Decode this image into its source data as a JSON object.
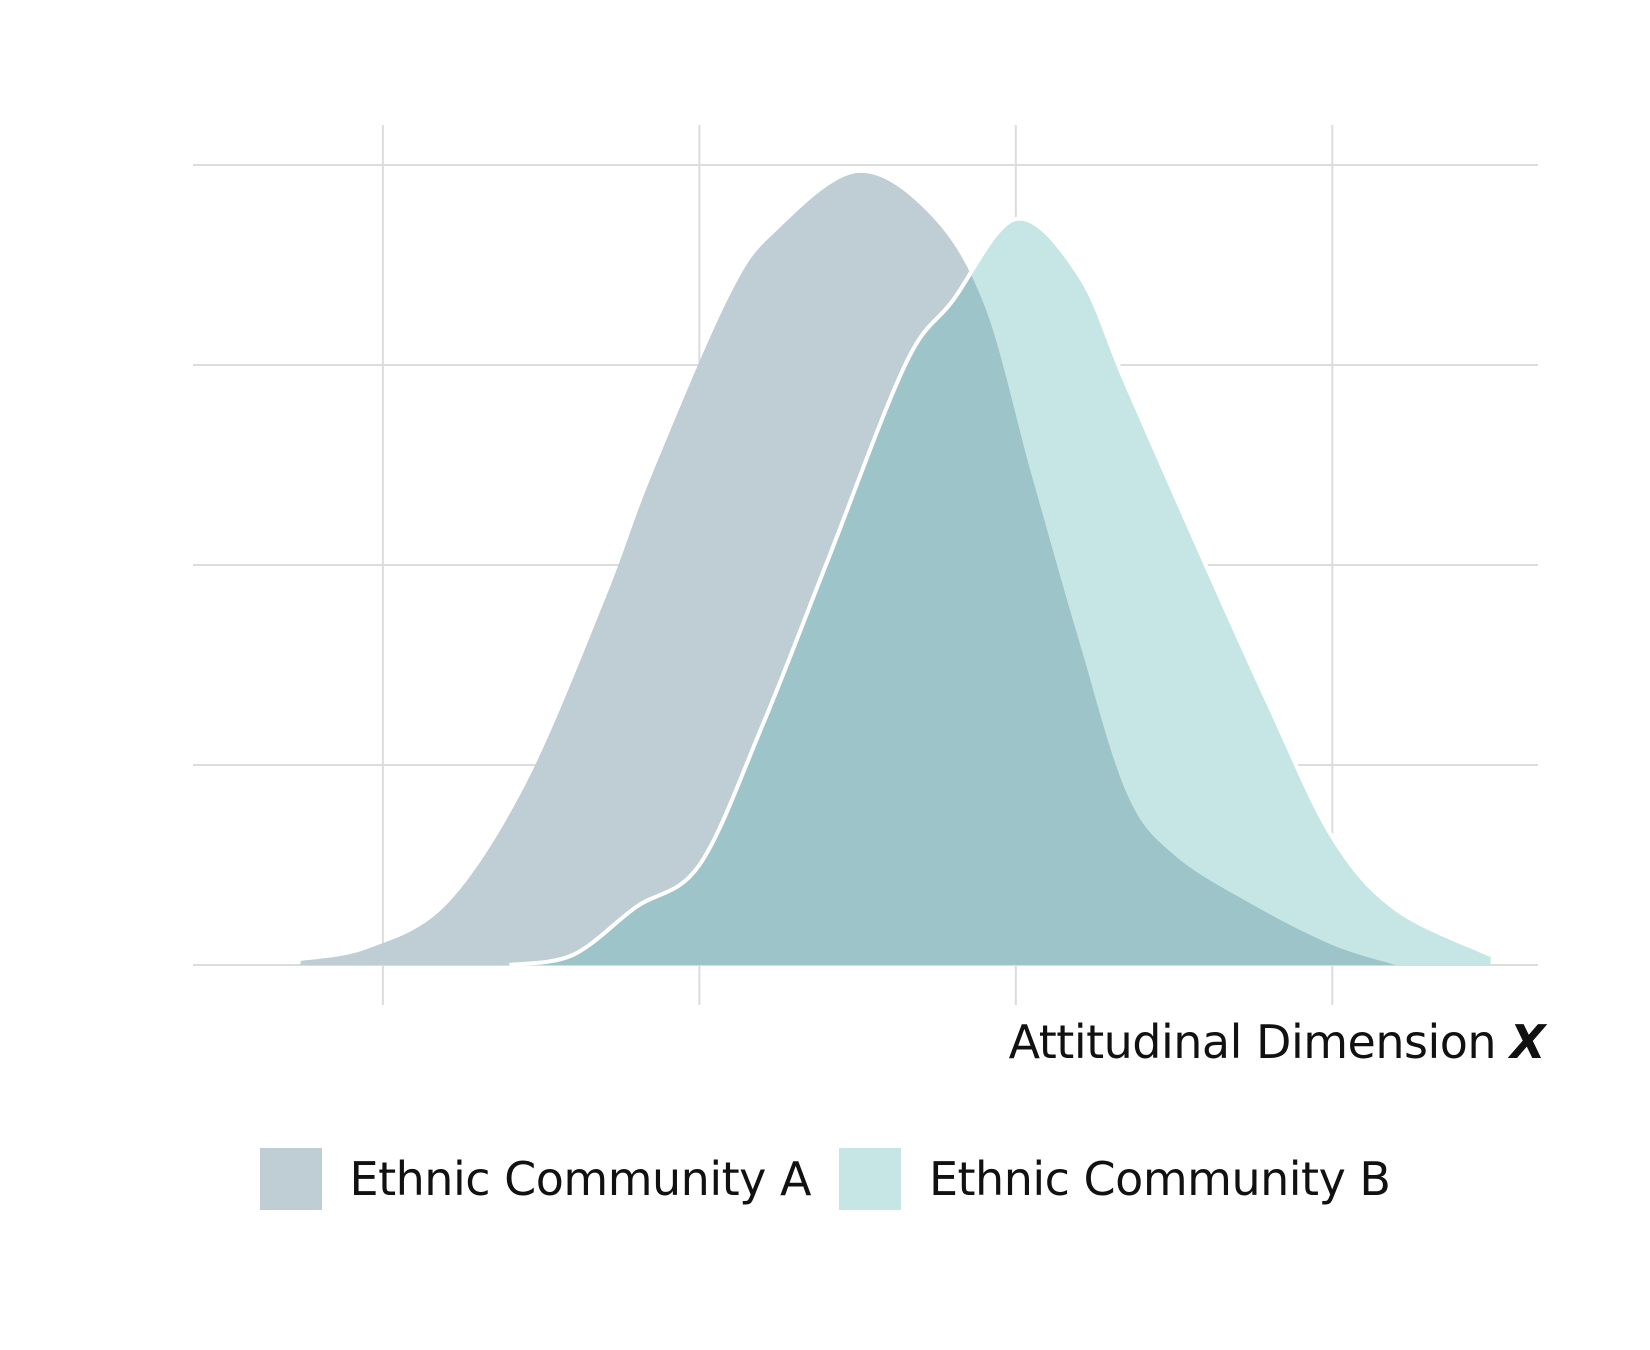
{
  "chart_data": {
    "type": "area",
    "title": "",
    "xlabel": "Attitudinal Dimension",
    "xlabel_variable": "X",
    "ylabel": "",
    "grid": true,
    "tick_labels_shown": false,
    "legend_placement": "bottom-center",
    "series": [
      {
        "name": "Ethnic Community A",
        "color": "#bfcdd4",
        "points": [
          [
            -2.26,
            0.02
          ],
          [
            -2.05,
            0.08
          ],
          [
            -1.8,
            0.3
          ],
          [
            -1.55,
            0.9
          ],
          [
            -1.3,
            1.82
          ],
          [
            -1.15,
            2.45
          ],
          [
            -0.9,
            3.36
          ],
          [
            -0.75,
            3.68
          ],
          [
            -0.5,
            3.96
          ],
          [
            -0.27,
            3.75
          ],
          [
            -0.1,
            3.3
          ],
          [
            0.05,
            2.45
          ],
          [
            0.2,
            1.62
          ],
          [
            0.35,
            0.86
          ],
          [
            0.5,
            0.55
          ],
          [
            0.75,
            0.3
          ],
          [
            1.0,
            0.1
          ],
          [
            1.2,
            0.0
          ]
        ]
      },
      {
        "name": "Ethnic Community B",
        "color": "#c5e6e4",
        "points": [
          [
            -1.6,
            0.0
          ],
          [
            -1.4,
            0.05
          ],
          [
            -1.2,
            0.29
          ],
          [
            -1.0,
            0.5
          ],
          [
            -0.8,
            1.2
          ],
          [
            -0.6,
            2.0
          ],
          [
            -0.35,
            3.0
          ],
          [
            -0.2,
            3.32
          ],
          [
            0.0,
            3.73
          ],
          [
            0.2,
            3.45
          ],
          [
            0.35,
            2.9
          ],
          [
            0.6,
            2.0
          ],
          [
            0.8,
            1.3
          ],
          [
            1.0,
            0.64
          ],
          [
            1.2,
            0.28
          ],
          [
            1.5,
            0.05
          ]
        ]
      }
    ],
    "overlap_color": "#9dc4c8",
    "xlim": [
      -2.6,
      1.65
    ],
    "ylim": [
      0,
      4
    ],
    "x_gridlines": [
      -2,
      -1,
      0,
      1
    ],
    "y_gridlines": [
      0,
      1,
      2,
      3,
      4
    ]
  }
}
